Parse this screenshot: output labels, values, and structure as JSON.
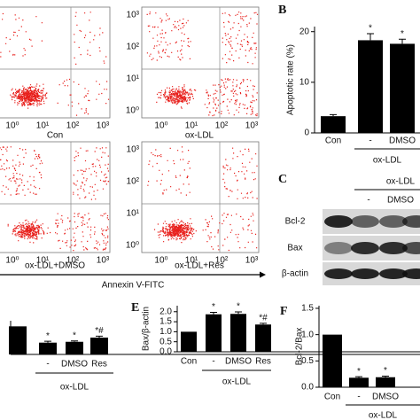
{
  "flow": {
    "plots": [
      {
        "caption": "Con"
      },
      {
        "caption": "ox-LDL"
      },
      {
        "caption": "ox-LDL+DMSO"
      },
      {
        "caption": "ox-LDL+Res"
      }
    ],
    "tick_labels": [
      "10⁰",
      "10¹",
      "10²",
      "10³"
    ],
    "x_axis_label": "Annexin V-FITC"
  },
  "blot": {
    "panel": "C",
    "group": "ox-LDL",
    "lanes": [
      "-",
      "DMSO"
    ],
    "rows": [
      "Bcl-2",
      "Bax",
      "β-actin"
    ]
  },
  "chart_data": [
    {
      "type": "bar",
      "panel": "B",
      "ylabel": "Apoptotic rate (%)",
      "categories": [
        "Con",
        "-",
        "DMSO"
      ],
      "group": "ox-LDL",
      "values": [
        3.3,
        18.3,
        17.6
      ],
      "errors": [
        0.3,
        1.3,
        0.9
      ],
      "annotations": [
        null,
        "*",
        "*"
      ],
      "color": "#000000",
      "ylim": [
        0,
        21
      ],
      "yticks": [
        0,
        10,
        20
      ]
    },
    {
      "type": "bar",
      "categories": [
        null,
        "-",
        "DMSO",
        "Res"
      ],
      "group": "ox-LDL",
      "values": [
        1.0,
        0.42,
        0.45,
        0.6
      ],
      "errors": [
        0,
        0.05,
        0.03,
        0.05
      ],
      "annotations": [
        null,
        "*",
        "*",
        "*#"
      ],
      "color": "#000000",
      "ylim": [
        0,
        1.2
      ]
    },
    {
      "type": "bar",
      "panel": "E",
      "ylabel": "Bax/β-actin",
      "categories": [
        "Con",
        "-",
        "DMSO",
        "Res"
      ],
      "group": "ox-LDL",
      "values": [
        1.0,
        1.87,
        1.89,
        1.36
      ],
      "errors": [
        0,
        0.1,
        0.1,
        0.06
      ],
      "annotations": [
        null,
        "*",
        "*",
        "*#"
      ],
      "color": "#000000",
      "ylim": [
        0,
        2.3
      ],
      "yticks": [
        {
          "value": 0,
          "label": "0.0"
        },
        {
          "value": 0.5,
          "label": "0.5"
        },
        {
          "value": 1,
          "label": "1.0"
        },
        {
          "value": 1.5,
          "label": "1.5"
        },
        {
          "value": 2,
          "label": "2.0"
        }
      ]
    },
    {
      "type": "bar",
      "panel": "F",
      "ylabel": "Bcl-2/Bax",
      "categories": [
        "Con",
        "-",
        "DMSO"
      ],
      "group": "ox-LDL",
      "values": [
        1.0,
        0.18,
        0.19
      ],
      "errors": [
        0,
        0.02,
        0.02
      ],
      "annotations": [
        null,
        "*",
        "*"
      ],
      "color": "#000000",
      "ylim": [
        0,
        1.55
      ],
      "yticks": [
        {
          "value": 0,
          "label": "0.0"
        },
        {
          "value": 0.5,
          "label": "0.5"
        },
        {
          "value": 1,
          "label": "1.0"
        },
        {
          "value": 1.5,
          "label": "1.5"
        }
      ]
    }
  ]
}
